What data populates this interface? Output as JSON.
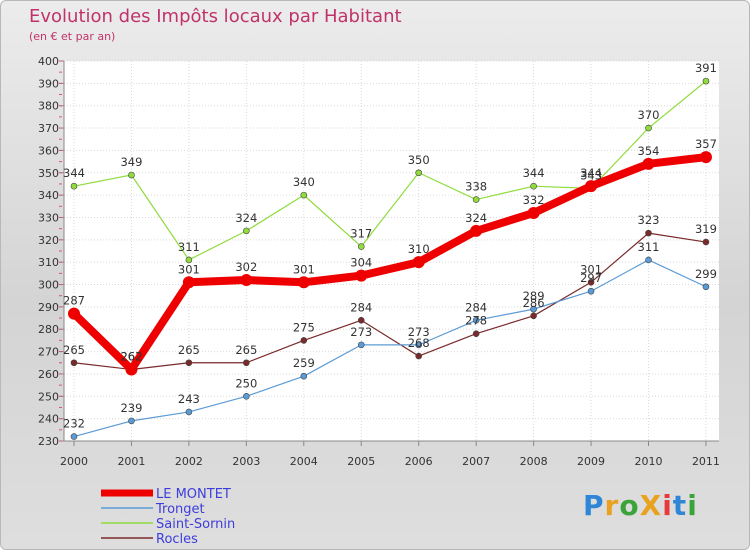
{
  "chart_data": {
    "type": "line",
    "title": "Evolution des Impôts locaux par Habitant",
    "subtitle": "(en € et par an)",
    "xlabel": "",
    "ylabel": "",
    "categories": [
      "2000",
      "2001",
      "2002",
      "2003",
      "2004",
      "2005",
      "2006",
      "2007",
      "2008",
      "2009",
      "2010",
      "2011"
    ],
    "ylim": [
      230,
      400
    ],
    "yticks": [
      230,
      240,
      250,
      260,
      270,
      280,
      290,
      300,
      310,
      320,
      330,
      340,
      350,
      360,
      370,
      380,
      390,
      400
    ],
    "grid": true,
    "legend_position": "bottom-left",
    "series": [
      {
        "name": "LE MONTET",
        "color": "#ee0000",
        "values": [
          287,
          262,
          301,
          302,
          301,
          304,
          310,
          324,
          332,
          344,
          354,
          357
        ]
      },
      {
        "name": "Tronget",
        "color": "#5b9bd5",
        "values": [
          232,
          239,
          243,
          250,
          259,
          273,
          273,
          284,
          289,
          297,
          311,
          299
        ]
      },
      {
        "name": "Saint-Sornin",
        "color": "#8fdc3c",
        "values": [
          344,
          349,
          311,
          324,
          340,
          317,
          350,
          338,
          344,
          343,
          370,
          391
        ]
      },
      {
        "name": "Rocles",
        "color": "#7a2a2a",
        "values": [
          265,
          262,
          265,
          265,
          275,
          284,
          268,
          278,
          286,
          301,
          323,
          319
        ]
      }
    ],
    "data_labels": {
      "LE MONTET": [
        "287",
        "262",
        "301",
        "302",
        "301",
        "304",
        "310",
        "324",
        "332",
        "344",
        "354",
        "357"
      ],
      "Tronget": [
        "232",
        "239",
        "243",
        "250",
        "259",
        "273",
        "273",
        "284",
        "289",
        "297",
        "311",
        "299"
      ],
      "Saint-Sornin": [
        "344",
        "349",
        "311",
        "324",
        "340",
        "317",
        "350",
        "338",
        "344",
        "343",
        "370",
        "391"
      ],
      "Rocles": [
        "265",
        "262",
        "265",
        "265",
        "275",
        "284",
        "268",
        "278",
        "286",
        "301",
        "323",
        "319"
      ]
    }
  },
  "logo": {
    "text": "ProXiti",
    "colors": [
      "#2f86d6",
      "#e8a21f",
      "#3aa43a",
      "#e8a21f",
      "#e83a3a",
      "#2f86d6",
      "#3aa43a"
    ]
  }
}
